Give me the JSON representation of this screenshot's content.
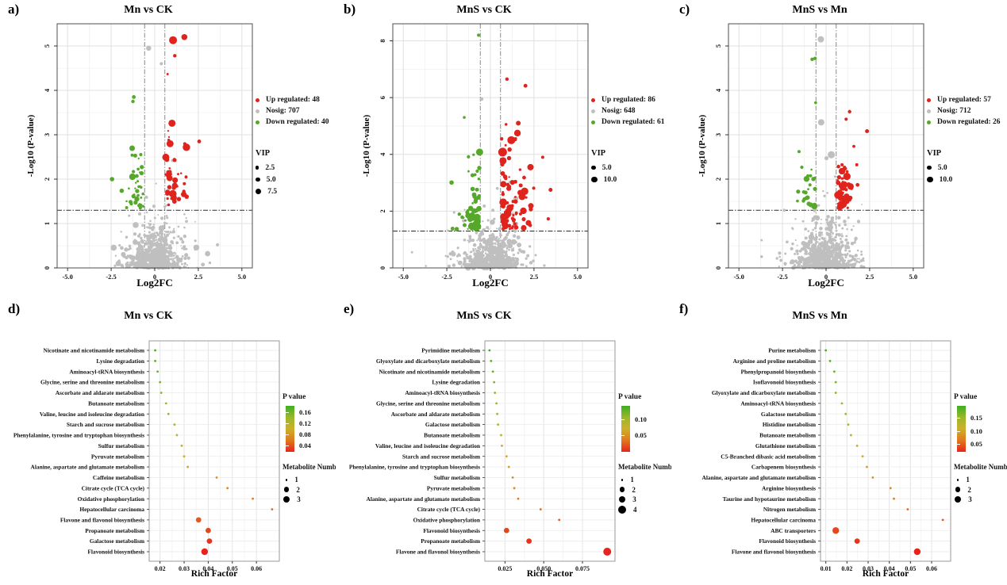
{
  "chart_data": [
    {
      "id": "a",
      "panel_label": "a)",
      "type": "scatter",
      "title": "Mn vs CK",
      "xlabel": "Log2FC",
      "ylabel": "-Log10 (P-value)",
      "xlim": [
        -5.6,
        5.6
      ],
      "ylim": [
        0,
        5.5
      ],
      "xtick_values": [
        -5,
        -2.5,
        0,
        2.5,
        5
      ],
      "xticks": [
        "-5.0",
        "-2.5",
        "0",
        "2.5",
        "5.0"
      ],
      "ytick_values": [
        0,
        1,
        2,
        3,
        4,
        5
      ],
      "yticks": [
        "0",
        "1",
        "2",
        "3",
        "4",
        "5"
      ],
      "thresholds": {
        "vlines": [
          -0.58,
          0.58
        ],
        "hline": 1.3
      },
      "series": [
        {
          "class": "up",
          "name": "Up regulated: 48",
          "count": 48,
          "color": "#e0231d"
        },
        {
          "class": "nosig",
          "name": "Nosig: 707",
          "count": 707,
          "color": "#bfbfbf"
        },
        {
          "class": "down",
          "name": "Down regulated: 40",
          "count": 40,
          "color": "#55a829"
        }
      ],
      "vip_legend": {
        "title": "VIP",
        "entries": [
          "2.5",
          "5.0",
          "7.5"
        ],
        "radii": [
          2.2,
          2.9,
          3.6
        ]
      },
      "gen": {
        "seed": 11,
        "grey_y": 0.75,
        "grey_max": 5.0,
        "up_y": 1.0,
        "up_max": 5.2,
        "ux": 0.68,
        "down_y": 0.75,
        "down_max": 3.9,
        "dx": 0.5
      },
      "features": [
        {
          "cls": "nosig",
          "x": -0.35,
          "y": 4.95,
          "r": 3.2
        },
        {
          "cls": "nosig",
          "x": 0.38,
          "y": 4.6,
          "r": 2
        },
        {
          "cls": "up",
          "x": 1.05,
          "y": 5.13,
          "r": 5
        },
        {
          "cls": "up",
          "x": 1.7,
          "y": 5.2,
          "r": 3.8
        },
        {
          "cls": "up",
          "x": 1.15,
          "y": 4.78,
          "r": 2.2
        },
        {
          "cls": "up",
          "x": 2.55,
          "y": 2.85,
          "r": 2.4
        },
        {
          "cls": "nosig",
          "x": 3.6,
          "y": 0.52,
          "r": 2
        },
        {
          "cls": "down",
          "x": -2.45,
          "y": 2.0,
          "r": 2.8
        },
        {
          "cls": "down",
          "x": -1.2,
          "y": 3.85,
          "r": 2.4
        },
        {
          "cls": "down",
          "x": -1.25,
          "y": 3.75,
          "r": 2.2
        }
      ]
    },
    {
      "id": "b",
      "panel_label": "b)",
      "type": "scatter",
      "title": "MnS vs CK",
      "xlabel": "Log2FC",
      "ylabel": "-Log10 (P-value)",
      "xlim": [
        -5.6,
        5.6
      ],
      "ylim": [
        0,
        8.6
      ],
      "xtick_values": [
        -5,
        -2.5,
        0,
        2.5,
        5
      ],
      "xticks": [
        "-5.0",
        "-2.5",
        "0",
        "2.5",
        "5.0"
      ],
      "ytick_values": [
        0,
        2,
        4,
        6,
        8
      ],
      "yticks": [
        "0",
        "2",
        "4",
        "6",
        "8"
      ],
      "thresholds": {
        "vlines": [
          -0.58,
          0.58
        ],
        "hline": 1.3
      },
      "series": [
        {
          "class": "up",
          "name": "Up regulated: 86",
          "count": 86,
          "color": "#e0231d"
        },
        {
          "class": "nosig",
          "name": "Nosig: 648",
          "count": 648,
          "color": "#bfbfbf"
        },
        {
          "class": "down",
          "name": "Down regulated: 61",
          "count": 61,
          "color": "#55a829"
        }
      ],
      "vip_legend": {
        "title": "VIP",
        "entries": [
          "5.0",
          "10.0"
        ],
        "radii": [
          2.9,
          3.8
        ]
      },
      "gen": {
        "seed": 13,
        "grey_y": 0.9,
        "grey_max": 5.9,
        "up_y": 1.35,
        "up_max": 6.6,
        "ux": 0.8,
        "down_y": 1.05,
        "down_max": 5.3,
        "dx": 0.55
      },
      "features": [
        {
          "cls": "down",
          "x": -0.68,
          "y": 8.2,
          "r": 2
        },
        {
          "cls": "nosig",
          "x": -0.5,
          "y": 5.95,
          "r": 2.2
        },
        {
          "cls": "up",
          "x": 0.95,
          "y": 6.65,
          "r": 2.2
        },
        {
          "cls": "up",
          "x": 1.6,
          "y": 5.1,
          "r": 3
        },
        {
          "cls": "up",
          "x": 1.55,
          "y": 4.75,
          "r": 4.2
        },
        {
          "cls": "up",
          "x": 1.2,
          "y": 4.5,
          "r": 5
        },
        {
          "cls": "up",
          "x": 0.7,
          "y": 4.08,
          "r": 5.5
        },
        {
          "cls": "down",
          "x": -0.62,
          "y": 4.08,
          "r": 4.5
        },
        {
          "cls": "down",
          "x": -1.5,
          "y": 5.3,
          "r": 1.8
        },
        {
          "cls": "up",
          "x": 3.0,
          "y": 3.9,
          "r": 2
        },
        {
          "cls": "up",
          "x": 3.45,
          "y": 2.75,
          "r": 2.5
        },
        {
          "cls": "nosig",
          "x": -4.5,
          "y": 0.55,
          "r": 1.5
        },
        {
          "cls": "nosig",
          "x": 2.6,
          "y": 0.45,
          "r": 1.5
        },
        {
          "cls": "up",
          "x": 2.3,
          "y": 3.55,
          "r": 4
        }
      ]
    },
    {
      "id": "c",
      "panel_label": "c)",
      "type": "scatter",
      "title": "MnS vs Mn",
      "xlabel": "Log2FC",
      "ylabel": "-Log10 (P-value)",
      "xlim": [
        -5.6,
        5.6
      ],
      "ylim": [
        0,
        5.5
      ],
      "xtick_values": [
        -5,
        -2.5,
        0,
        2.5,
        5
      ],
      "xticks": [
        "-5.0",
        "-2.5",
        "0",
        "2.5",
        "5.0"
      ],
      "ytick_values": [
        0,
        1,
        2,
        3,
        4,
        5
      ],
      "yticks": [
        "0",
        "1",
        "2",
        "3",
        "4",
        "5"
      ],
      "thresholds": {
        "vlines": [
          -0.58,
          0.58
        ],
        "hline": 1.3
      },
      "series": [
        {
          "class": "up",
          "name": "Up regulated: 57",
          "count": 57,
          "color": "#e0231d"
        },
        {
          "class": "nosig",
          "name": "Nosig: 712",
          "count": 712,
          "color": "#bfbfbf"
        },
        {
          "class": "down",
          "name": "Down regulated: 26",
          "count": 26,
          "color": "#55a829"
        }
      ],
      "vip_legend": {
        "title": "VIP",
        "entries": [
          "5.0",
          "10.0"
        ],
        "radii": [
          2.9,
          3.8
        ]
      },
      "gen": {
        "seed": 29,
        "grey_y": 0.78,
        "grey_max": 5.1,
        "up_y": 0.6,
        "up_max": 3.5,
        "ux": 0.45,
        "down_y": 0.55,
        "down_max": 3.7,
        "dx": 0.55
      },
      "features": [
        {
          "cls": "nosig",
          "x": -0.3,
          "y": 5.15,
          "r": 4
        },
        {
          "cls": "down",
          "x": -0.8,
          "y": 4.7,
          "r": 2.2
        },
        {
          "cls": "down",
          "x": -0.63,
          "y": 4.72,
          "r": 2.2
        },
        {
          "cls": "down",
          "x": -0.6,
          "y": 3.72,
          "r": 1.8
        },
        {
          "cls": "up",
          "x": 1.35,
          "y": 3.52,
          "r": 2.2
        },
        {
          "cls": "up",
          "x": 1.15,
          "y": 3.35,
          "r": 2
        },
        {
          "cls": "up",
          "x": 2.35,
          "y": 3.08,
          "r": 2.5
        },
        {
          "cls": "nosig",
          "x": -0.28,
          "y": 3.28,
          "r": 4
        },
        {
          "cls": "nosig",
          "x": 0.3,
          "y": 2.55,
          "r": 4.5
        },
        {
          "cls": "down",
          "x": -1.55,
          "y": 2.62,
          "r": 2
        },
        {
          "cls": "nosig",
          "x": -2.4,
          "y": 1.3,
          "r": 1.8
        },
        {
          "cls": "down",
          "x": -1.6,
          "y": 1.72,
          "r": 2.6
        }
      ]
    },
    {
      "id": "d",
      "panel_label": "d)",
      "type": "dotplot",
      "title": "Mn vs CK",
      "xlabel": "Rich Factor",
      "xlim": [
        0.0155,
        0.0695
      ],
      "xtick_values": [
        0.02,
        0.03,
        0.04,
        0.05,
        0.06
      ],
      "xticks": [
        "0.02",
        "0.03",
        "0.04",
        "0.05",
        "0.06"
      ],
      "rows": [
        {
          "label": "Nicotinate and nicotinamide metabolism",
          "rich_factor": 0.018,
          "n": 1
        },
        {
          "label": "Lysine degradation",
          "rich_factor": 0.018,
          "n": 1
        },
        {
          "label": "Aminoacyl-tRNA biosynthesis",
          "rich_factor": 0.019,
          "n": 1
        },
        {
          "label": "Glycine, serine and threonine metabolism",
          "rich_factor": 0.02,
          "n": 1
        },
        {
          "label": "Ascorbate and aldarate metabolism",
          "rich_factor": 0.0205,
          "n": 1
        },
        {
          "label": "Butanoate metabolism",
          "rich_factor": 0.0225,
          "n": 1
        },
        {
          "label": "Valine, leucine and isoleucine degradation",
          "rich_factor": 0.0235,
          "n": 1
        },
        {
          "label": "Starch and sucrose metabolism",
          "rich_factor": 0.026,
          "n": 1
        },
        {
          "label": "Phenylalanine, tyrosine and tryptophan biosynthesis",
          "rich_factor": 0.027,
          "n": 1
        },
        {
          "label": "Sulfur metabolism",
          "rich_factor": 0.029,
          "n": 1
        },
        {
          "label": "Pyruvate metabolism",
          "rich_factor": 0.03,
          "n": 1
        },
        {
          "label": "Alanine, aspartate and glutamate metabolism",
          "rich_factor": 0.0315,
          "n": 1
        },
        {
          "label": "Caffeine metabolism",
          "rich_factor": 0.0435,
          "n": 1
        },
        {
          "label": "Citrate cycle (TCA cycle)",
          "rich_factor": 0.048,
          "n": 1
        },
        {
          "label": "Oxidative phosphorylation",
          "rich_factor": 0.0585,
          "n": 1
        },
        {
          "label": "Hepatocellular carcinoma",
          "rich_factor": 0.0665,
          "n": 1
        },
        {
          "label": "Flavone and flavonol biosynthesis",
          "rich_factor": 0.036,
          "n": 2
        },
        {
          "label": "Propanoate metabolism",
          "rich_factor": 0.04,
          "n": 2
        },
        {
          "label": "Galactose metabolism",
          "rich_factor": 0.0405,
          "n": 2
        },
        {
          "label": "Flavonoid biosynthesis",
          "rich_factor": 0.0385,
          "n": 3
        }
      ],
      "p_gradient": [
        "#3fae21",
        "#9ab72b",
        "#cdb02a",
        "#e0791d",
        "#e8231c"
      ],
      "pvalue_legend": {
        "title": "P value",
        "ticks": [
          "0.16",
          "0.12",
          "0.08",
          "0.04"
        ],
        "fractions": [
          0.13,
          0.38,
          0.62,
          0.86
        ]
      },
      "size_legend": {
        "title": "Metabolite Number",
        "entries": [
          "1",
          "2",
          "3"
        ],
        "ns": [
          1,
          2,
          3
        ]
      }
    },
    {
      "id": "e",
      "panel_label": "e)",
      "type": "dotplot",
      "title": "MnS vs CK",
      "xlabel": "Rich Factor",
      "xlim": [
        0.012,
        0.096
      ],
      "xtick_values": [
        0.025,
        0.05,
        0.075
      ],
      "xticks": [
        "0.025",
        "0.050",
        "0.075"
      ],
      "rows": [
        {
          "label": "Pyrimidine metabolism",
          "rich_factor": 0.015,
          "n": 1
        },
        {
          "label": "Glyoxylate and dicarboxylate metabolism",
          "rich_factor": 0.016,
          "n": 1
        },
        {
          "label": "Nicotinate and nicotinamide metabolism",
          "rich_factor": 0.0172,
          "n": 1
        },
        {
          "label": "Lysine degradation",
          "rich_factor": 0.018,
          "n": 1
        },
        {
          "label": "Aminoacyl-tRNA biosynthesis",
          "rich_factor": 0.0185,
          "n": 1
        },
        {
          "label": "Glycine, serine and threonine metabolism",
          "rich_factor": 0.0195,
          "n": 1
        },
        {
          "label": "Ascorbate and aldarate metabolism",
          "rich_factor": 0.02,
          "n": 1
        },
        {
          "label": "Galactose metabolism",
          "rich_factor": 0.0205,
          "n": 1
        },
        {
          "label": "Butanoate metabolism",
          "rich_factor": 0.0225,
          "n": 1
        },
        {
          "label": "Valine, leucine and isoleucine degradation",
          "rich_factor": 0.023,
          "n": 1
        },
        {
          "label": "Starch and sucrose metabolism",
          "rich_factor": 0.026,
          "n": 1
        },
        {
          "label": "Phenylalanine, tyrosine and tryptophan biosynthesis",
          "rich_factor": 0.0275,
          "n": 1
        },
        {
          "label": "Sulfur metabolism",
          "rich_factor": 0.03,
          "n": 1
        },
        {
          "label": "Pyruvate metabolism",
          "rich_factor": 0.031,
          "n": 1
        },
        {
          "label": "Alanine, aspartate and glutamate metabolism",
          "rich_factor": 0.0335,
          "n": 1
        },
        {
          "label": "Citrate cycle (TCA cycle)",
          "rich_factor": 0.048,
          "n": 1
        },
        {
          "label": "Oxidative phosphorylation",
          "rich_factor": 0.06,
          "n": 1
        },
        {
          "label": "Flavonoid biosynthesis",
          "rich_factor": 0.026,
          "n": 2
        },
        {
          "label": "Propanoate metabolism",
          "rich_factor": 0.0405,
          "n": 2
        },
        {
          "label": "Flavone and flavonol biosynthesis",
          "rich_factor": 0.091,
          "n": 4
        }
      ],
      "p_gradient": [
        "#3fae21",
        "#9ab72b",
        "#cdb02a",
        "#e0791d",
        "#e8231c"
      ],
      "pvalue_legend": {
        "title": "P value",
        "ticks": [
          "0.10",
          "0.05"
        ],
        "fractions": [
          0.3,
          0.64
        ]
      },
      "size_legend": {
        "title": "Metabolite Number",
        "entries": [
          "1",
          "2",
          "3",
          "4"
        ],
        "ns": [
          1,
          2,
          3,
          4
        ]
      }
    },
    {
      "id": "f",
      "panel_label": "f)",
      "type": "dotplot",
      "title": "MnS vs Mn",
      "xlabel": "Rich Factor",
      "xlim": [
        0.0075,
        0.069
      ],
      "xtick_values": [
        0.01,
        0.02,
        0.03,
        0.04,
        0.05,
        0.06
      ],
      "xticks": [
        "0.01",
        "0.02",
        "0.03",
        "0.04",
        "0.05",
        "0.06"
      ],
      "rows": [
        {
          "label": "Purine metabolism",
          "rich_factor": 0.01,
          "n": 1
        },
        {
          "label": "Arginine and proline metabolism",
          "rich_factor": 0.012,
          "n": 1
        },
        {
          "label": "Phenylpropanoid biosynthesis",
          "rich_factor": 0.014,
          "n": 1
        },
        {
          "label": "Isoflavonoid biosynthesis",
          "rich_factor": 0.0147,
          "n": 1
        },
        {
          "label": "Glyoxylate and dicarboxylate metabolism",
          "rich_factor": 0.0147,
          "n": 1
        },
        {
          "label": "Aminoacyl-tRNA biosynthesis",
          "rich_factor": 0.0176,
          "n": 1
        },
        {
          "label": "Galactose metabolism",
          "rich_factor": 0.0194,
          "n": 1
        },
        {
          "label": "Histidine metabolism",
          "rich_factor": 0.0206,
          "n": 1
        },
        {
          "label": "Butanoate metabolism",
          "rich_factor": 0.0219,
          "n": 1
        },
        {
          "label": "Glutathione metabolism",
          "rich_factor": 0.0248,
          "n": 1
        },
        {
          "label": "C5-Branched dibasic acid metabolism",
          "rich_factor": 0.0274,
          "n": 1
        },
        {
          "label": "Carbapenem biosynthesis",
          "rich_factor": 0.0294,
          "n": 1
        },
        {
          "label": "Alanine, aspartate and glutamate metabolism",
          "rich_factor": 0.0322,
          "n": 1
        },
        {
          "label": "Arginine biosynthesis",
          "rich_factor": 0.0406,
          "n": 1
        },
        {
          "label": "Taurine and hypotaurine metabolism",
          "rich_factor": 0.0422,
          "n": 1
        },
        {
          "label": "Nitrogen metabolism",
          "rich_factor": 0.0487,
          "n": 1
        },
        {
          "label": "Hepatocellular carcinoma",
          "rich_factor": 0.0653,
          "n": 1
        },
        {
          "label": "ABC transporters",
          "rich_factor": 0.0147,
          "n": 3
        },
        {
          "label": "Flavonoid biosynthesis",
          "rich_factor": 0.0248,
          "n": 2
        },
        {
          "label": "Flavone and flavonol biosynthesis",
          "rich_factor": 0.0532,
          "n": 3
        }
      ],
      "p_gradient": [
        "#3fae21",
        "#9ab72b",
        "#cdb02a",
        "#e0791d",
        "#e8231c"
      ],
      "pvalue_legend": {
        "title": "P value",
        "ticks": [
          "0.15",
          "0.10",
          "0.05"
        ],
        "fractions": [
          0.25,
          0.55,
          0.82
        ]
      },
      "size_legend": {
        "title": "Metabolite Number",
        "entries": [
          "1",
          "2",
          "3"
        ],
        "ns": [
          1,
          2,
          3
        ]
      }
    }
  ]
}
